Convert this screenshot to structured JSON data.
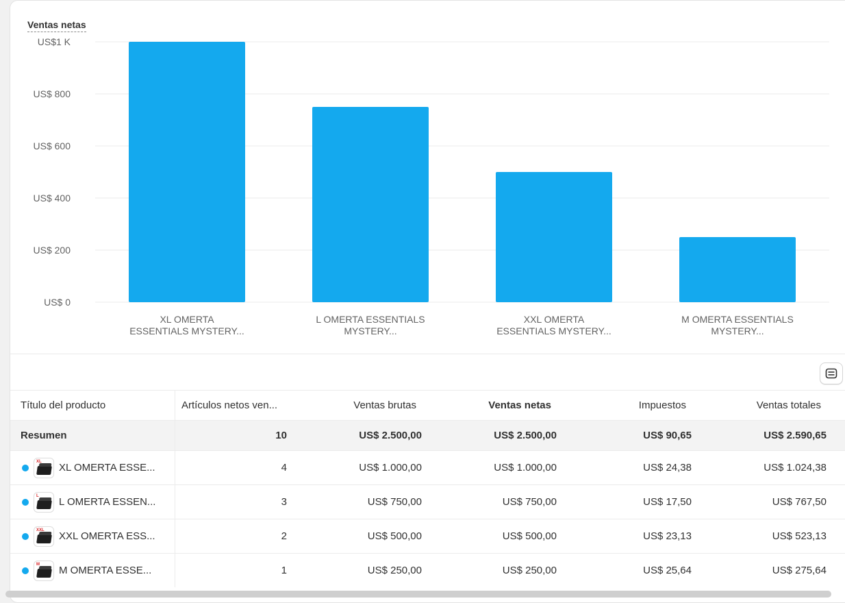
{
  "chart_data": {
    "type": "bar",
    "title": "Ventas netas",
    "categories": [
      [
        "XL OMERTA",
        "ESSENTIALS MYSTERY..."
      ],
      [
        "L OMERTA ESSENTIALS",
        "MYSTERY..."
      ],
      [
        "XXL OMERTA",
        "ESSENTIALS MYSTERY..."
      ],
      [
        "M OMERTA ESSENTIALS",
        "MYSTERY..."
      ]
    ],
    "values": [
      1000,
      750,
      500,
      250
    ],
    "ylim": [
      0,
      1000
    ],
    "yticks": [
      0,
      200,
      400,
      600,
      800,
      1000
    ],
    "ytick_labels": [
      "US$ 0",
      "US$ 200",
      "US$ 400",
      "US$ 600",
      "US$ 800",
      "US$1 K"
    ],
    "bar_color": "#14a9ee",
    "grid": true
  },
  "table": {
    "headers": [
      "Título del producto",
      "Artículos netos ven...",
      "Ventas brutas",
      "Ventas netas",
      "Impuestos",
      "Ventas totales"
    ],
    "summary": [
      "Resumen",
      "10",
      "US$ 2.500,00",
      "US$ 2.500,00",
      "US$ 90,65",
      "US$ 2.590,65"
    ],
    "rows": [
      {
        "size_tag": "XL",
        "title": "XL OMERTA ESSE...",
        "units": "4",
        "gross": "US$ 1.000,00",
        "net": "US$ 1.000,00",
        "taxes": "US$ 24,38",
        "total": "US$ 1.024,38"
      },
      {
        "size_tag": "L",
        "title": "L OMERTA ESSEN...",
        "units": "3",
        "gross": "US$ 750,00",
        "net": "US$ 750,00",
        "taxes": "US$ 17,50",
        "total": "US$ 767,50"
      },
      {
        "size_tag": "XXL",
        "title": "XXL OMERTA ESS...",
        "units": "2",
        "gross": "US$ 500,00",
        "net": "US$ 500,00",
        "taxes": "US$ 23,13",
        "total": "US$ 523,13"
      },
      {
        "size_tag": "M",
        "title": "M OMERTA ESSE...",
        "units": "1",
        "gross": "US$ 250,00",
        "net": "US$ 250,00",
        "taxes": "US$ 25,64",
        "total": "US$ 275,64"
      }
    ]
  },
  "icons": {
    "settings": "table-settings-icon",
    "series_dot_color": "#14a9ee"
  }
}
